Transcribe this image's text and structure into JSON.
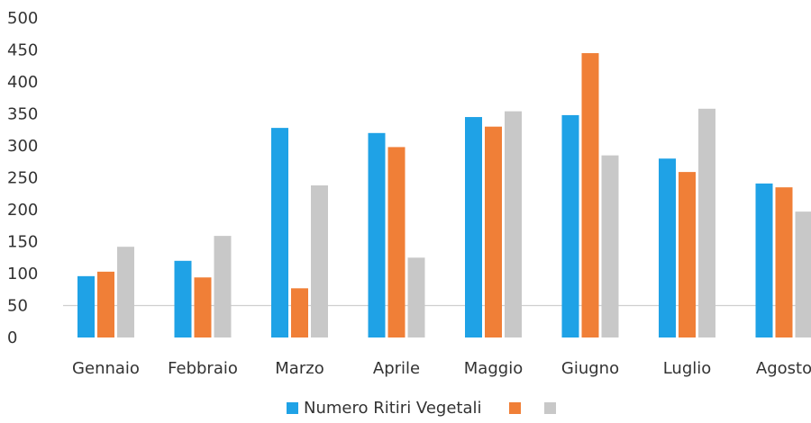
{
  "chart_data": {
    "type": "bar",
    "categories": [
      "Gennaio",
      "Febbraio",
      "Marzo",
      "Aprile",
      "Maggio",
      "Giugno",
      "Luglio",
      "Agosto"
    ],
    "series": [
      {
        "name": "Numero Ritiri Vegetali",
        "color": "#1FA2E6",
        "values": [
          96,
          120,
          328,
          320,
          345,
          348,
          280,
          241
        ]
      },
      {
        "color": "#F07F37",
        "values": [
          103,
          94,
          77,
          298,
          330,
          445,
          259,
          235
        ]
      },
      {
        "color": "#C8C8C8",
        "values": [
          142,
          159,
          238,
          125,
          354,
          285,
          358,
          197
        ]
      }
    ],
    "y_ticks": [
      "0",
      "50",
      "100",
      "150",
      "200",
      "250",
      "300",
      "350",
      "400",
      "450",
      "500"
    ],
    "ylim": [
      0,
      500
    ],
    "gridline_at": 50,
    "legend_position": "bottom"
  }
}
